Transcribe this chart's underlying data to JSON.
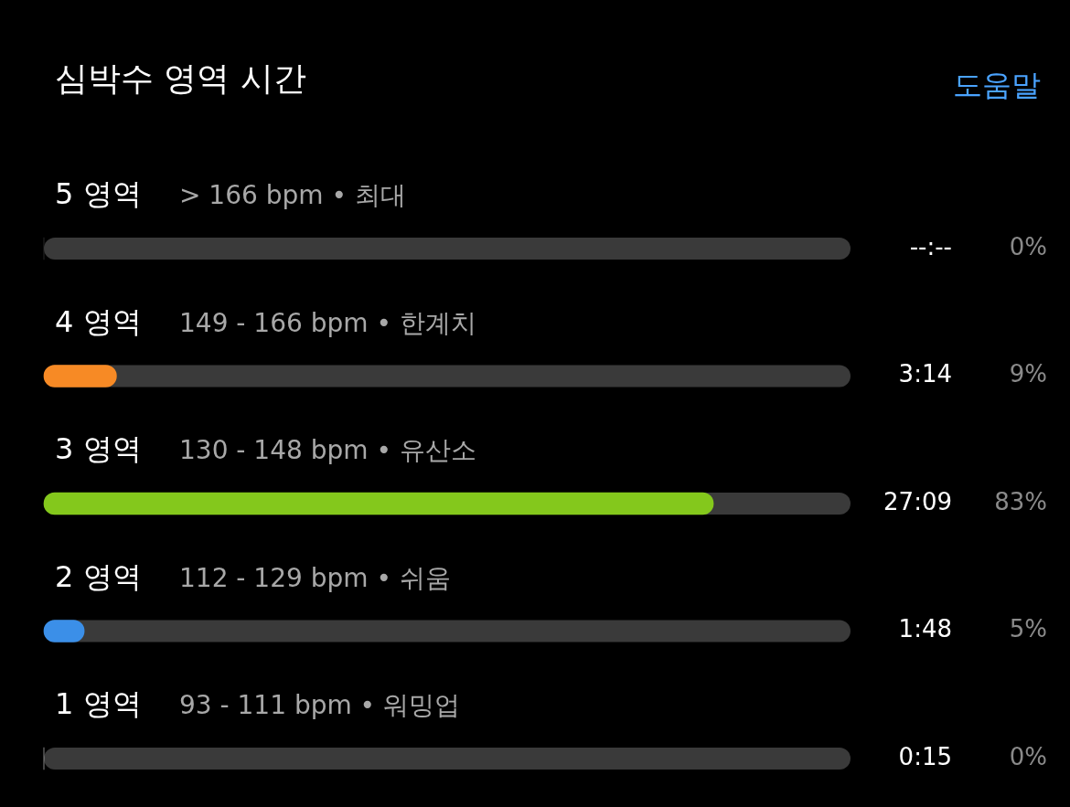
{
  "chart_data": {
    "type": "bar",
    "orientation": "horizontal",
    "title": "심박수 영역 시간",
    "categories": [
      "5 영역",
      "4 영역",
      "3 영역",
      "2 영역",
      "1 영역"
    ],
    "series": [
      {
        "values": [
          0,
          9,
          83,
          5,
          0
        ],
        "colors": [
          "#3a3a3a",
          "#f78a25",
          "#84c81c",
          "#3b8fe8",
          "#c8c8c8"
        ],
        "value_labels": [
          "0%",
          "9%",
          "83%",
          "5%",
          "0%"
        ]
      }
    ],
    "xlim": [
      0,
      100
    ],
    "legend": false,
    "annotations": [
      "도움말",
      "> 166 bpm • 최대",
      "149 - 166 bpm • 한계치",
      "130 - 148 bpm • 유산소",
      "112 - 129 bpm • 쉬움",
      "93 - 111 bpm • 워밍업",
      "--:--",
      "3:14",
      "27:09",
      "1:48",
      "0:15"
    ]
  }
}
